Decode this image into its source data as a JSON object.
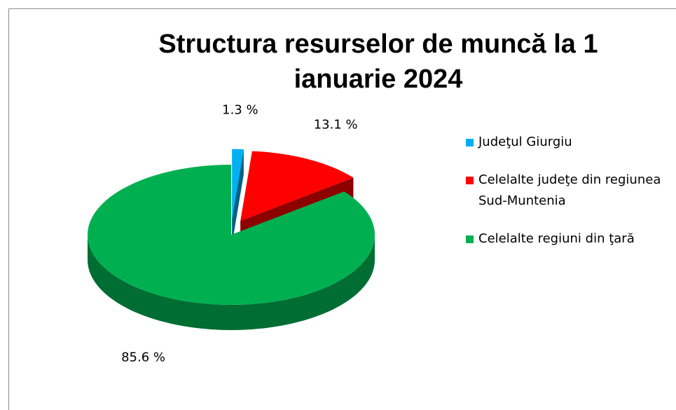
{
  "chart_data": {
    "type": "pie3d",
    "title": "Structura resurselor de muncă la 1 ianuarie 2024",
    "categories": [
      "Judeţul Giurgiu",
      "Celelalte judeţe din regiunea Sud-Muntenia",
      "Celelalte regiuni din ţară"
    ],
    "values": [
      1.3,
      13.1,
      85.6
    ],
    "value_labels": [
      "1.3 %",
      "13.1 %",
      "85.6 %"
    ],
    "colors": [
      "#00b0f0",
      "#ff0000",
      "#00b050"
    ],
    "legend": "right"
  }
}
